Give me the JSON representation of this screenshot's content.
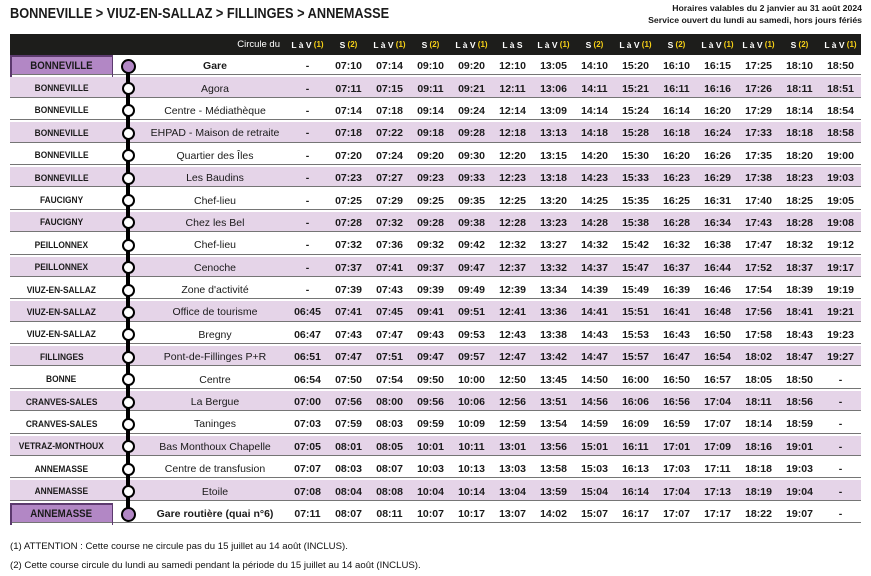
{
  "page": {
    "breadcrumb": "BONNEVILLE > VIUZ-EN-SALLAZ > FILLINGES > ANNEMASSE",
    "validity_line1": "Horaires valables du 2 janvier au 31 août 2024",
    "validity_line2": "Service ouvert du lundi au samedi, hors jours fériés"
  },
  "colors": {
    "header_bg": "#1d1d1b",
    "note_yellow": "#f7d117",
    "stripe_lavender": "#e5d4e8",
    "terminus_purple": "#b287c5",
    "timeline_black": "#000000"
  },
  "table": {
    "circule_du_label": "Circule du",
    "day_columns": [
      {
        "label": "L à V",
        "note": "(1)"
      },
      {
        "label": "S",
        "note": "(2)"
      },
      {
        "label": "L à V",
        "note": "(1)"
      },
      {
        "label": "S",
        "note": "(2)"
      },
      {
        "label": "L à V",
        "note": "(1)"
      },
      {
        "label": "L à S",
        "note": ""
      },
      {
        "label": "L à V",
        "note": "(1)"
      },
      {
        "label": "S",
        "note": "(2)"
      },
      {
        "label": "L à V",
        "note": "(1)"
      },
      {
        "label": "S",
        "note": "(2)"
      },
      {
        "label": "L à V",
        "note": "(1)"
      },
      {
        "label": "L à V",
        "note": "(1)"
      },
      {
        "label": "S",
        "note": "(2)"
      },
      {
        "label": "L à V",
        "note": "(1)"
      }
    ],
    "rows": [
      {
        "commune": "BONNEVILLE",
        "stop": "Gare",
        "terminus": true,
        "times": [
          "-",
          "07:10",
          "07:14",
          "09:10",
          "09:20",
          "12:10",
          "13:05",
          "14:10",
          "15:20",
          "16:10",
          "16:15",
          "17:25",
          "18:10",
          "18:50"
        ]
      },
      {
        "commune": "BONNEVILLE",
        "stop": "Agora",
        "terminus": false,
        "times": [
          "-",
          "07:11",
          "07:15",
          "09:11",
          "09:21",
          "12:11",
          "13:06",
          "14:11",
          "15:21",
          "16:11",
          "16:16",
          "17:26",
          "18:11",
          "18:51"
        ]
      },
      {
        "commune": "BONNEVILLE",
        "stop": "Centre - Médiathèque",
        "terminus": false,
        "times": [
          "-",
          "07:14",
          "07:18",
          "09:14",
          "09:24",
          "12:14",
          "13:09",
          "14:14",
          "15:24",
          "16:14",
          "16:20",
          "17:29",
          "18:14",
          "18:54"
        ]
      },
      {
        "commune": "BONNEVILLE",
        "stop": "EHPAD - Maison de retraite",
        "terminus": false,
        "times": [
          "-",
          "07:18",
          "07:22",
          "09:18",
          "09:28",
          "12:18",
          "13:13",
          "14:18",
          "15:28",
          "16:18",
          "16:24",
          "17:33",
          "18:18",
          "18:58"
        ]
      },
      {
        "commune": "BONNEVILLE",
        "stop": "Quartier des Îles",
        "terminus": false,
        "times": [
          "-",
          "07:20",
          "07:24",
          "09:20",
          "09:30",
          "12:20",
          "13:15",
          "14:20",
          "15:30",
          "16:20",
          "16:26",
          "17:35",
          "18:20",
          "19:00"
        ]
      },
      {
        "commune": "BONNEVILLE",
        "stop": "Les Baudins",
        "terminus": false,
        "times": [
          "-",
          "07:23",
          "07:27",
          "09:23",
          "09:33",
          "12:23",
          "13:18",
          "14:23",
          "15:33",
          "16:23",
          "16:29",
          "17:38",
          "18:23",
          "19:03"
        ]
      },
      {
        "commune": "FAUCIGNY",
        "stop": "Chef-lieu",
        "terminus": false,
        "times": [
          "-",
          "07:25",
          "07:29",
          "09:25",
          "09:35",
          "12:25",
          "13:20",
          "14:25",
          "15:35",
          "16:25",
          "16:31",
          "17:40",
          "18:25",
          "19:05"
        ]
      },
      {
        "commune": "FAUCIGNY",
        "stop": "Chez les Bel",
        "terminus": false,
        "times": [
          "-",
          "07:28",
          "07:32",
          "09:28",
          "09:38",
          "12:28",
          "13:23",
          "14:28",
          "15:38",
          "16:28",
          "16:34",
          "17:43",
          "18:28",
          "19:08"
        ]
      },
      {
        "commune": "PEILLONNEX",
        "stop": "Chef-lieu",
        "terminus": false,
        "times": [
          "-",
          "07:32",
          "07:36",
          "09:32",
          "09:42",
          "12:32",
          "13:27",
          "14:32",
          "15:42",
          "16:32",
          "16:38",
          "17:47",
          "18:32",
          "19:12"
        ]
      },
      {
        "commune": "PEILLONNEX",
        "stop": "Cenoche",
        "terminus": false,
        "times": [
          "-",
          "07:37",
          "07:41",
          "09:37",
          "09:47",
          "12:37",
          "13:32",
          "14:37",
          "15:47",
          "16:37",
          "16:44",
          "17:52",
          "18:37",
          "19:17"
        ]
      },
      {
        "commune": "VIUZ-EN-SALLAZ",
        "stop": "Zone d'activité",
        "terminus": false,
        "times": [
          "-",
          "07:39",
          "07:43",
          "09:39",
          "09:49",
          "12:39",
          "13:34",
          "14:39",
          "15:49",
          "16:39",
          "16:46",
          "17:54",
          "18:39",
          "19:19"
        ]
      },
      {
        "commune": "VIUZ-EN-SALLAZ",
        "stop": "Office de tourisme",
        "terminus": false,
        "times": [
          "06:45",
          "07:41",
          "07:45",
          "09:41",
          "09:51",
          "12:41",
          "13:36",
          "14:41",
          "15:51",
          "16:41",
          "16:48",
          "17:56",
          "18:41",
          "19:21"
        ]
      },
      {
        "commune": "VIUZ-EN-SALLAZ",
        "stop": "Bregny",
        "terminus": false,
        "times": [
          "06:47",
          "07:43",
          "07:47",
          "09:43",
          "09:53",
          "12:43",
          "13:38",
          "14:43",
          "15:53",
          "16:43",
          "16:50",
          "17:58",
          "18:43",
          "19:23"
        ]
      },
      {
        "commune": "FILLINGES",
        "stop": "Pont-de-Fillinges P+R",
        "terminus": false,
        "times": [
          "06:51",
          "07:47",
          "07:51",
          "09:47",
          "09:57",
          "12:47",
          "13:42",
          "14:47",
          "15:57",
          "16:47",
          "16:54",
          "18:02",
          "18:47",
          "19:27"
        ]
      },
      {
        "commune": "BONNE",
        "stop": "Centre",
        "terminus": false,
        "times": [
          "06:54",
          "07:50",
          "07:54",
          "09:50",
          "10:00",
          "12:50",
          "13:45",
          "14:50",
          "16:00",
          "16:50",
          "16:57",
          "18:05",
          "18:50",
          "-"
        ]
      },
      {
        "commune": "CRANVES-SALES",
        "stop": "La Bergue",
        "terminus": false,
        "times": [
          "07:00",
          "07:56",
          "08:00",
          "09:56",
          "10:06",
          "12:56",
          "13:51",
          "14:56",
          "16:06",
          "16:56",
          "17:04",
          "18:11",
          "18:56",
          "-"
        ]
      },
      {
        "commune": "CRANVES-SALES",
        "stop": "Taninges",
        "terminus": false,
        "times": [
          "07:03",
          "07:59",
          "08:03",
          "09:59",
          "10:09",
          "12:59",
          "13:54",
          "14:59",
          "16:09",
          "16:59",
          "17:07",
          "18:14",
          "18:59",
          "-"
        ]
      },
      {
        "commune": "VETRAZ-MONTHOUX",
        "stop": "Bas Monthoux Chapelle",
        "terminus": false,
        "times": [
          "07:05",
          "08:01",
          "08:05",
          "10:01",
          "10:11",
          "13:01",
          "13:56",
          "15:01",
          "16:11",
          "17:01",
          "17:09",
          "18:16",
          "19:01",
          "-"
        ]
      },
      {
        "commune": "ANNEMASSE",
        "stop": "Centre de transfusion",
        "terminus": false,
        "times": [
          "07:07",
          "08:03",
          "08:07",
          "10:03",
          "10:13",
          "13:03",
          "13:58",
          "15:03",
          "16:13",
          "17:03",
          "17:11",
          "18:18",
          "19:03",
          "-"
        ]
      },
      {
        "commune": "ANNEMASSE",
        "stop": "Etoile",
        "terminus": false,
        "times": [
          "07:08",
          "08:04",
          "08:08",
          "10:04",
          "10:14",
          "13:04",
          "13:59",
          "15:04",
          "16:14",
          "17:04",
          "17:13",
          "18:19",
          "19:04",
          "-"
        ]
      },
      {
        "commune": "ANNEMASSE",
        "stop": "Gare routière (quai n°6)",
        "terminus": true,
        "times": [
          "07:11",
          "08:07",
          "08:11",
          "10:07",
          "10:17",
          "13:07",
          "14:02",
          "15:07",
          "16:17",
          "17:07",
          "17:17",
          "18:22",
          "19:07",
          "-"
        ]
      }
    ]
  },
  "footnotes": [
    "(1) ATTENTION : Cette course ne circule pas du 15 juillet au 14 août (INCLUS).",
    "(2) Cette course circule du lundi au samedi pendant la période du 15 juillet au 14 août (INCLUS)."
  ]
}
